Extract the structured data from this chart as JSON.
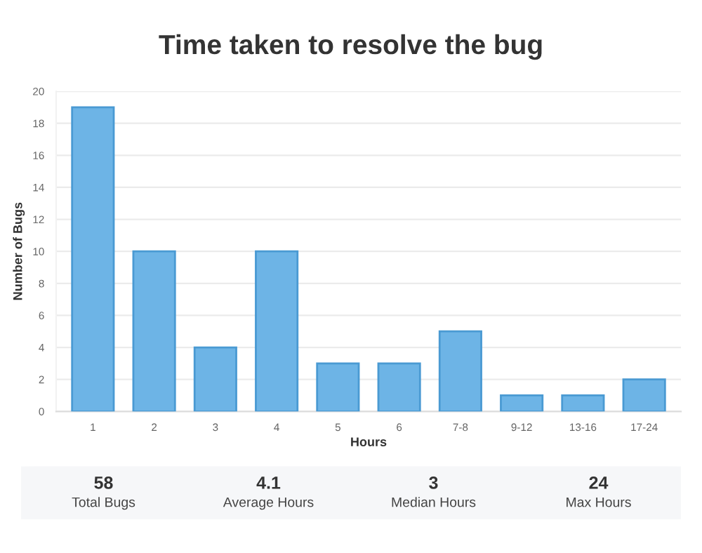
{
  "chart_data": [
    {
      "type": "bar",
      "title": "Time taken to resolve the bug",
      "xlabel": "Hours",
      "ylabel": "Number of Bugs",
      "categories": [
        "1",
        "2",
        "3",
        "4",
        "5",
        "6",
        "7-8",
        "9-12",
        "13-16",
        "17-24"
      ],
      "values": [
        19,
        10,
        4,
        10,
        3,
        3,
        5,
        1,
        1,
        2
      ],
      "color": "#6db4e6",
      "ylim": [
        0,
        20
      ],
      "yticks": [
        0,
        2,
        4,
        6,
        8,
        10,
        12,
        14,
        16,
        18,
        20
      ],
      "grid": "y"
    },
    {
      "type": "other",
      "annotations": [
        "58",
        "Total Bugs",
        "4.1",
        "Average Hours",
        "3",
        "Median Hours",
        "24",
        "Max Hours"
      ]
    }
  ]
}
